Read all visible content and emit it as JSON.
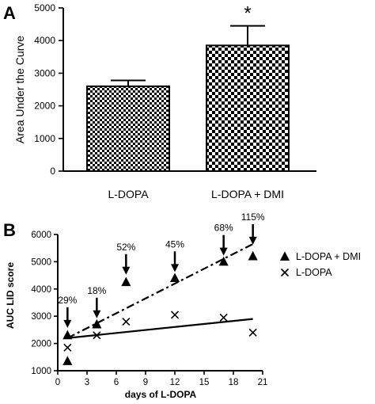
{
  "chart_data": [
    {
      "panel": "A",
      "type": "bar",
      "ylabel": "Area Under the Curve",
      "ylim": [
        0,
        5000
      ],
      "yticks": [
        0,
        1000,
        2000,
        3000,
        4000,
        5000
      ],
      "categories": [
        "L-DOPA",
        "L-DOPA + DMI"
      ],
      "values": [
        2600,
        3850
      ],
      "errors": [
        180,
        600
      ],
      "significance": [
        "",
        "*"
      ],
      "pattern": "checkerboard"
    },
    {
      "panel": "B",
      "type": "scatter",
      "xlabel": "days of L-DOPA",
      "ylabel": "AUC LID score",
      "xlim": [
        0,
        21
      ],
      "ylim": [
        1000,
        6000
      ],
      "xticks": [
        0,
        3,
        6,
        9,
        12,
        15,
        18,
        21
      ],
      "yticks": [
        1000,
        2000,
        3000,
        4000,
        5000,
        6000
      ],
      "series": [
        {
          "name": "L-DOPA + DMI",
          "marker": "triangle",
          "x": [
            1,
            1,
            4,
            7,
            12,
            17,
            20
          ],
          "y": [
            2300,
            1350,
            2700,
            4250,
            4400,
            5000,
            5200
          ],
          "trend": {
            "style": "dash-dot",
            "x": [
              1,
              20
            ],
            "y": [
              2200,
              5650
            ]
          }
        },
        {
          "name": "L-DOPA",
          "marker": "x",
          "x": [
            1,
            4,
            7,
            12,
            17,
            20
          ],
          "y": [
            1850,
            2300,
            2800,
            3050,
            2950,
            2400
          ],
          "trend": {
            "style": "solid",
            "x": [
              1,
              20
            ],
            "y": [
              2200,
              2900
            ]
          }
        }
      ],
      "annotations": [
        {
          "text": "29%",
          "x": 1,
          "y": 2400
        },
        {
          "text": "18%",
          "x": 4,
          "y": 2750
        },
        {
          "text": "52%",
          "x": 7,
          "y": 4350
        },
        {
          "text": "45%",
          "x": 12,
          "y": 4450
        },
        {
          "text": "68%",
          "x": 17,
          "y": 5050
        },
        {
          "text": "115%",
          "x": 20,
          "y": 5450
        }
      ],
      "legend": "right"
    }
  ]
}
